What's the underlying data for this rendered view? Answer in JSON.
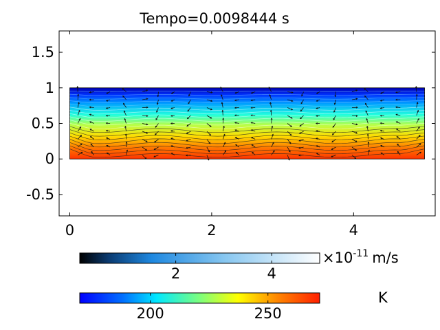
{
  "chart_data": {
    "type": "heatmap",
    "title": "Tempo=0.0098444 s",
    "xlim": [
      -0.15,
      5.15
    ],
    "ylim": [
      -0.8,
      1.8
    ],
    "x_ticks": [
      "0",
      "2",
      "4"
    ],
    "x_tick_values": [
      0,
      2,
      4
    ],
    "y_ticks": [
      "1.5",
      "1",
      "0.5",
      "0",
      "-0.5"
    ],
    "y_tick_values": [
      1.5,
      1,
      0.5,
      0,
      -0.5
    ],
    "domain": {
      "x": [
        0,
        5
      ],
      "y": [
        0,
        1
      ]
    },
    "temperature": {
      "bottom": 272,
      "top": 170
    },
    "colorbars": [
      {
        "name": "velocity",
        "colormap": "black-blue-white",
        "range": [
          0,
          5
        ],
        "tick_labels": [
          "2",
          "4"
        ],
        "tick_values": [
          2,
          4
        ],
        "exponent_label": "×10",
        "exponent": "-11",
        "unit": "m/s"
      },
      {
        "name": "temperature",
        "colormap": "jet",
        "range": [
          170,
          272
        ],
        "tick_labels": [
          "200",
          "250"
        ],
        "tick_values": [
          200,
          250
        ],
        "unit": "K"
      }
    ],
    "contour_levels": 20,
    "grid": false,
    "colors": {
      "frame": "#000000",
      "contour_dark": "#222222"
    }
  }
}
